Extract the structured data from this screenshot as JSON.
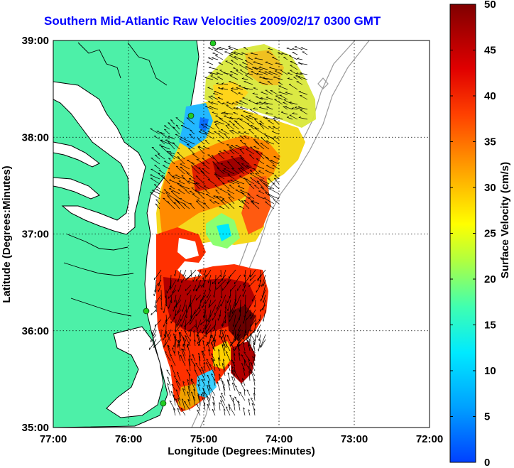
{
  "title": "Southern Mid-Atlantic Raw Velocities 2009/02/17 0300 GMT",
  "map": {
    "xlabel": "Longitude (Degrees:Minutes)",
    "ylabel": "Latitude (Degrees:Minutes)",
    "x_ticks": [
      "77:00",
      "76:00",
      "75:00",
      "74:00",
      "73:00",
      "72:00"
    ],
    "y_ticks": [
      "39:00",
      "38:00",
      "37:00",
      "36:00",
      "35:00"
    ],
    "lon_range": [
      -77,
      -72
    ],
    "lat_range": [
      35,
      39
    ],
    "colors": {
      "land": "#4df0a8",
      "coast": "#000000",
      "bathymetry": "#9a9a9a",
      "station": "#22cc22",
      "grid": "#000000"
    }
  },
  "colorbar": {
    "label": "Surface Velocity (cm/s)",
    "ticks": [
      "0",
      "5",
      "10",
      "15",
      "20",
      "25",
      "30",
      "35",
      "40",
      "45",
      "50"
    ],
    "range": [
      0,
      50
    ]
  }
}
